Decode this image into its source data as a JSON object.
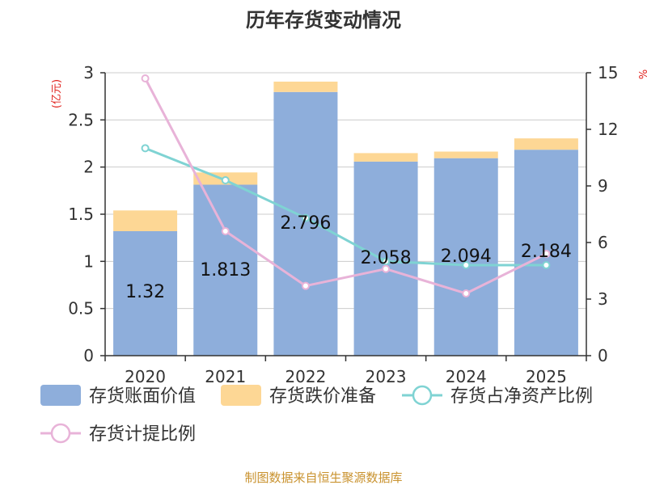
{
  "chart_data": {
    "type": "bar",
    "title": "历年存货变动情况",
    "categories": [
      "2020",
      "2021",
      "2022",
      "2023",
      "2024",
      "2025"
    ],
    "left_axis": {
      "unit": "(亿元)",
      "ylim": [
        0,
        3
      ],
      "ticks": [
        "0",
        "0.5",
        "1",
        "1.5",
        "2",
        "2.5",
        "3"
      ]
    },
    "right_axis": {
      "unit": "%",
      "ylim": [
        0,
        15
      ],
      "ticks": [
        "0",
        "3",
        "6",
        "9",
        "12",
        "15"
      ]
    },
    "series": [
      {
        "name": "存货账面价值",
        "kind": "bar",
        "color": "#8eaedb",
        "values": [
          1.32,
          1.813,
          2.796,
          2.058,
          2.094,
          2.184
        ],
        "labels": [
          "1.32",
          "1.813",
          "2.796",
          "2.058",
          "2.094",
          "2.184"
        ]
      },
      {
        "name": "存货跌价准备",
        "kind": "bar-stack",
        "color": "#fdd795",
        "values": [
          0.22,
          0.13,
          0.11,
          0.09,
          0.07,
          0.12
        ]
      },
      {
        "name": "存货占净资产比例",
        "kind": "line",
        "axis": "right",
        "color": "#7fd3d3",
        "values": [
          11.0,
          9.3,
          7.3,
          5.0,
          4.8,
          4.8
        ]
      },
      {
        "name": "存货计提比例",
        "kind": "line",
        "axis": "right",
        "color": "#e8b3d8",
        "values": [
          14.7,
          6.6,
          3.7,
          4.6,
          3.3,
          5.4
        ]
      }
    ],
    "grid": true,
    "legend_position": "bottom"
  },
  "footer": {
    "source": "制图数据来自恒生聚源数据库"
  }
}
